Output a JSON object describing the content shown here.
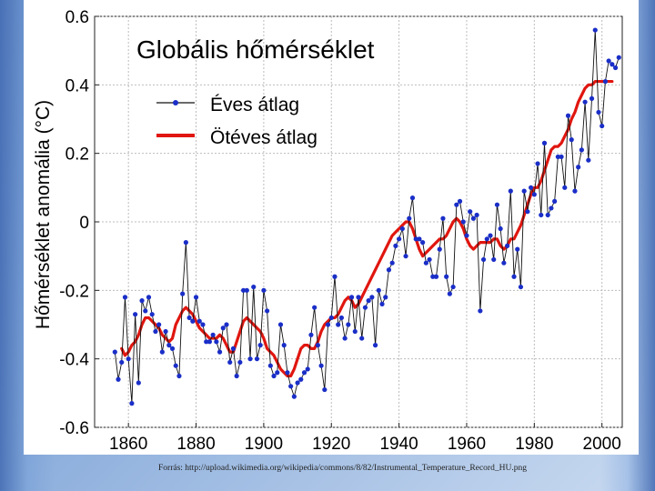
{
  "source_note": "Forrás: http://upload.wikimedia.org/wikipedia/commons/8/82/Instrumental_Temperature_Record_HU.png",
  "chart_data": {
    "type": "line",
    "title": "Globális hőmérséklet",
    "xlabel": "",
    "ylabel": "Hőmérséklet anomália (°C)",
    "xlim": [
      1850,
      2006
    ],
    "ylim": [
      -0.6,
      0.6
    ],
    "x_ticks": [
      "1860",
      "1880",
      "1900",
      "1920",
      "1940",
      "1960",
      "1980",
      "2000"
    ],
    "y_ticks": [
      "-0.6",
      "-0.4",
      "-0.2",
      "0",
      "0.2",
      "0.4",
      "0.6"
    ],
    "grid": true,
    "legend_position": "top-left",
    "colors": {
      "annual": "#1a2ec8",
      "annual_line": "#111111",
      "smooth": "#e0160f"
    },
    "series": [
      {
        "name": "Éves átlag",
        "x": [
          1856,
          1857,
          1858,
          1859,
          1860,
          1861,
          1862,
          1863,
          1864,
          1865,
          1866,
          1867,
          1868,
          1869,
          1870,
          1871,
          1872,
          1873,
          1874,
          1875,
          1876,
          1877,
          1878,
          1879,
          1880,
          1881,
          1882,
          1883,
          1884,
          1885,
          1886,
          1887,
          1888,
          1889,
          1890,
          1891,
          1892,
          1893,
          1894,
          1895,
          1896,
          1897,
          1898,
          1899,
          1900,
          1901,
          1902,
          1903,
          1904,
          1905,
          1906,
          1907,
          1908,
          1909,
          1910,
          1911,
          1912,
          1913,
          1914,
          1915,
          1916,
          1917,
          1918,
          1919,
          1920,
          1921,
          1922,
          1923,
          1924,
          1925,
          1926,
          1927,
          1928,
          1929,
          1930,
          1931,
          1932,
          1933,
          1934,
          1935,
          1936,
          1937,
          1938,
          1939,
          1940,
          1941,
          1942,
          1943,
          1944,
          1945,
          1946,
          1947,
          1948,
          1949,
          1950,
          1951,
          1952,
          1953,
          1954,
          1955,
          1956,
          1957,
          1958,
          1959,
          1960,
          1961,
          1962,
          1963,
          1964,
          1965,
          1966,
          1967,
          1968,
          1969,
          1970,
          1971,
          1972,
          1973,
          1974,
          1975,
          1976,
          1977,
          1978,
          1979,
          1980,
          1981,
          1982,
          1983,
          1984,
          1985,
          1986,
          1987,
          1988,
          1989,
          1990,
          1991,
          1992,
          1993,
          1994,
          1995,
          1996,
          1997,
          1998,
          1999,
          2000,
          2001,
          2002,
          2003,
          2004,
          2005
        ],
        "values": [
          -0.38,
          -0.46,
          -0.41,
          -0.22,
          -0.4,
          -0.53,
          -0.27,
          -0.47,
          -0.23,
          -0.26,
          -0.22,
          -0.27,
          -0.32,
          -0.3,
          -0.38,
          -0.32,
          -0.36,
          -0.37,
          -0.42,
          -0.45,
          -0.21,
          -0.06,
          -0.28,
          -0.29,
          -0.22,
          -0.29,
          -0.3,
          -0.35,
          -0.35,
          -0.33,
          -0.35,
          -0.38,
          -0.31,
          -0.3,
          -0.41,
          -0.37,
          -0.45,
          -0.41,
          -0.2,
          -0.2,
          -0.4,
          -0.19,
          -0.4,
          -0.36,
          -0.2,
          -0.26,
          -0.42,
          -0.45,
          -0.44,
          -0.3,
          -0.36,
          -0.44,
          -0.48,
          -0.51,
          -0.47,
          -0.46,
          -0.44,
          -0.43,
          -0.33,
          -0.25,
          -0.36,
          -0.42,
          -0.49,
          -0.3,
          -0.28,
          -0.16,
          -0.3,
          -0.28,
          -0.34,
          -0.3,
          -0.22,
          -0.32,
          -0.22,
          -0.34,
          -0.25,
          -0.23,
          -0.22,
          -0.36,
          -0.2,
          -0.24,
          -0.22,
          -0.14,
          -0.12,
          -0.07,
          -0.05,
          -0.02,
          -0.1,
          0.01,
          0.07,
          -0.05,
          -0.05,
          -0.06,
          -0.12,
          -0.11,
          -0.16,
          -0.16,
          -0.08,
          0.01,
          -0.16,
          -0.21,
          -0.19,
          0.05,
          0.06,
          0.0,
          -0.04,
          0.03,
          0.01,
          0.02,
          -0.26,
          -0.11,
          -0.05,
          -0.04,
          -0.11,
          0.05,
          -0.02,
          -0.12,
          -0.07,
          0.09,
          -0.16,
          -0.08,
          -0.19,
          0.09,
          0.03,
          0.1,
          0.08,
          0.17,
          0.02,
          0.23,
          0.02,
          0.04,
          0.06,
          0.19,
          0.19,
          0.1,
          0.31,
          0.24,
          0.09,
          0.16,
          0.21,
          0.35,
          0.18,
          0.36,
          0.56,
          0.32,
          0.28,
          0.41,
          0.47,
          0.46,
          0.45,
          0.48
        ]
      },
      {
        "name": "Ötéves átlag",
        "x": [
          1858,
          1859,
          1860,
          1861,
          1862,
          1863,
          1864,
          1865,
          1866,
          1867,
          1868,
          1869,
          1870,
          1871,
          1872,
          1873,
          1874,
          1875,
          1876,
          1877,
          1878,
          1879,
          1880,
          1881,
          1882,
          1883,
          1884,
          1885,
          1886,
          1887,
          1888,
          1889,
          1890,
          1891,
          1892,
          1893,
          1894,
          1895,
          1896,
          1897,
          1898,
          1899,
          1900,
          1901,
          1902,
          1903,
          1904,
          1905,
          1906,
          1907,
          1908,
          1909,
          1910,
          1911,
          1912,
          1913,
          1914,
          1915,
          1916,
          1917,
          1918,
          1919,
          1920,
          1921,
          1922,
          1923,
          1924,
          1925,
          1926,
          1927,
          1928,
          1929,
          1930,
          1931,
          1932,
          1933,
          1934,
          1935,
          1936,
          1937,
          1938,
          1939,
          1940,
          1941,
          1942,
          1943,
          1944,
          1945,
          1946,
          1947,
          1948,
          1949,
          1950,
          1951,
          1952,
          1953,
          1954,
          1955,
          1956,
          1957,
          1958,
          1959,
          1960,
          1961,
          1962,
          1963,
          1964,
          1965,
          1966,
          1967,
          1968,
          1969,
          1970,
          1971,
          1972,
          1973,
          1974,
          1975,
          1976,
          1977,
          1978,
          1979,
          1980,
          1981,
          1982,
          1983,
          1984,
          1985,
          1986,
          1987,
          1988,
          1989,
          1990,
          1991,
          1992,
          1993,
          1994,
          1995,
          1996,
          1997,
          1998,
          1999,
          2000,
          2001,
          2002,
          2003
        ],
        "values": [
          -0.37,
          -0.39,
          -0.38,
          -0.36,
          -0.35,
          -0.33,
          -0.3,
          -0.28,
          -0.28,
          -0.29,
          -0.3,
          -0.31,
          -0.33,
          -0.34,
          -0.35,
          -0.34,
          -0.3,
          -0.28,
          -0.26,
          -0.25,
          -0.26,
          -0.27,
          -0.29,
          -0.31,
          -0.32,
          -0.33,
          -0.34,
          -0.34,
          -0.34,
          -0.33,
          -0.34,
          -0.36,
          -0.38,
          -0.38,
          -0.35,
          -0.32,
          -0.29,
          -0.28,
          -0.29,
          -0.3,
          -0.31,
          -0.32,
          -0.34,
          -0.37,
          -0.38,
          -0.39,
          -0.41,
          -0.43,
          -0.44,
          -0.45,
          -0.45,
          -0.43,
          -0.4,
          -0.37,
          -0.36,
          -0.36,
          -0.37,
          -0.37,
          -0.35,
          -0.32,
          -0.3,
          -0.29,
          -0.28,
          -0.28,
          -0.27,
          -0.25,
          -0.23,
          -0.22,
          -0.23,
          -0.25,
          -0.24,
          -0.22,
          -0.2,
          -0.18,
          -0.16,
          -0.14,
          -0.12,
          -0.1,
          -0.08,
          -0.06,
          -0.04,
          -0.03,
          -0.02,
          -0.01,
          0.0,
          0.0,
          -0.02,
          -0.05,
          -0.08,
          -0.1,
          -0.09,
          -0.08,
          -0.07,
          -0.06,
          -0.05,
          -0.05,
          -0.04,
          -0.02,
          0.0,
          0.01,
          0.0,
          -0.02,
          -0.05,
          -0.07,
          -0.08,
          -0.07,
          -0.06,
          -0.06,
          -0.06,
          -0.06,
          -0.05,
          -0.05,
          -0.07,
          -0.08,
          -0.07,
          -0.05,
          -0.05,
          -0.03,
          -0.01,
          0.02,
          0.05,
          0.08,
          0.1,
          0.1,
          0.12,
          0.15,
          0.18,
          0.21,
          0.22,
          0.22,
          0.23,
          0.25,
          0.27,
          0.3,
          0.32,
          0.35,
          0.37,
          0.39,
          0.4,
          0.4,
          0.41,
          0.41,
          0.41,
          0.41,
          0.41,
          0.41
        ]
      }
    ]
  }
}
